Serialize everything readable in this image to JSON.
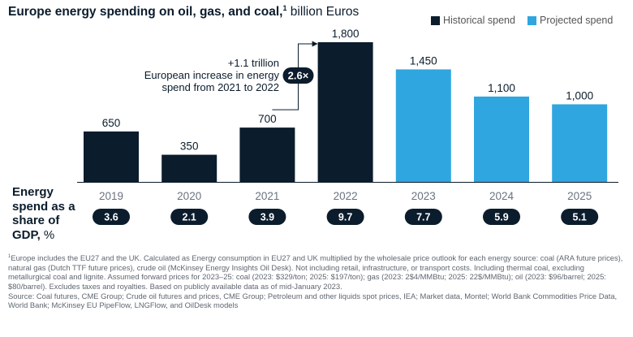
{
  "title": {
    "bold": "Europe energy spending on oil, gas, and coal,",
    "footnote_mark": "1",
    "unit": " billion Euros"
  },
  "legend": [
    {
      "label": "Historical spend",
      "color": "#0b1c2c"
    },
    {
      "label": "Projected spend",
      "color": "#2fa6df"
    }
  ],
  "chart_data": {
    "type": "bar",
    "categories": [
      "2019",
      "2020",
      "2021",
      "2022",
      "2023",
      "2024",
      "2025"
    ],
    "series": [
      {
        "name": "Historical spend",
        "values": [
          650,
          350,
          700,
          1800,
          null,
          null,
          null
        ],
        "color": "#0b1c2c"
      },
      {
        "name": "Projected spend",
        "values": [
          null,
          null,
          null,
          null,
          1450,
          1100,
          1000
        ],
        "color": "#2fa6df"
      }
    ],
    "data_labels": [
      "650",
      "350",
      "700",
      "1,800",
      "1,450",
      "1,100",
      "1,000"
    ],
    "ylim": [
      0,
      1800
    ],
    "annotation": {
      "badge": "2.6×",
      "lines": [
        "+1.1 trillion",
        "European increase in energy",
        "spend from 2021 to 2022"
      ]
    },
    "gdp_share": {
      "label_lines": [
        "Energy",
        "spend as a",
        "share of"
      ],
      "label_last": "GDP,",
      "label_unit": " %",
      "values": [
        "3.6",
        "2.1",
        "3.9",
        "9.7",
        "7.7",
        "5.9",
        "5.1"
      ]
    }
  },
  "footnote": {
    "mark": "1",
    "text": "Europe includes the EU27 and the UK. Calculated as Energy consumption in EU27 and UK multiplied by the wholesale price outlook for each energy source: coal (ARA future prices), natural gas (Dutch TTF future prices), crude oil (McKinsey Energy Insights Oil Desk). Not including retail, infrastructure, or transport costs. Including thermal coal, excluding metallurgical coal and lignite. Assumed forward prices for 2023–25: coal (2023: $329/ton; 2025: $197/ton); gas (2023: 2$4/MMBtu; 2025: 22$/MMBtu); oil (2023: $96/barrel; 2025: $80/barrel). Excludes taxes and royalties. Based on publicly available data as of mid-January 2023.",
    "source": "Source: Coal futures, CME Group; Crude oil futures and prices, CME Group; Petroleum and other liquids spot prices, IEA; Market data, Montel; World Bank Commodities Price Data, World Bank; McKinsey EU PipeFlow, LNGFlow, and OilDesk models"
  }
}
